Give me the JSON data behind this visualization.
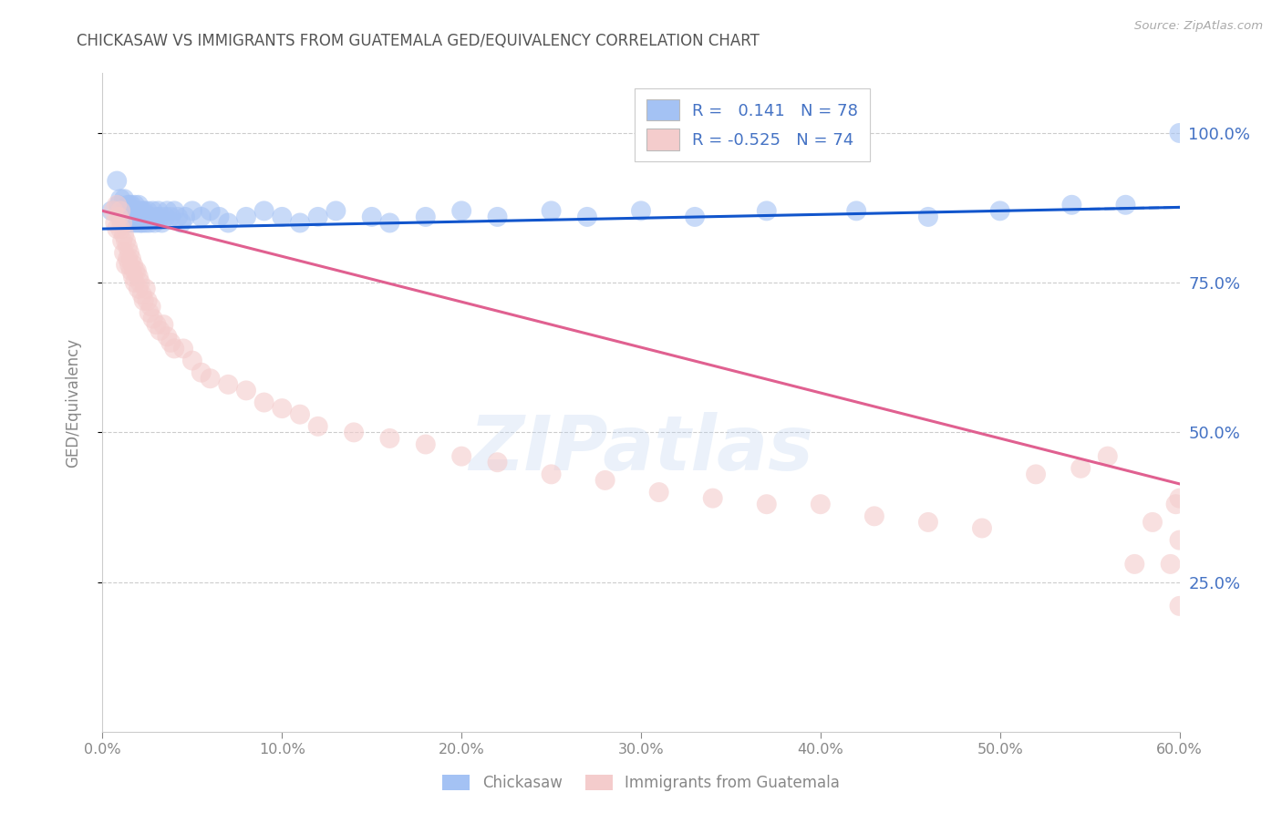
{
  "title": "CHICKASAW VS IMMIGRANTS FROM GUATEMALA GED/EQUIVALENCY CORRELATION CHART",
  "source": "Source: ZipAtlas.com",
  "ylabel": "GED/Equivalency",
  "xlim": [
    0.0,
    0.6
  ],
  "ylim": [
    0.0,
    1.1
  ],
  "xtick_labels": [
    "0.0%",
    "10.0%",
    "20.0%",
    "30.0%",
    "40.0%",
    "50.0%",
    "60.0%"
  ],
  "xtick_vals": [
    0.0,
    0.1,
    0.2,
    0.3,
    0.4,
    0.5,
    0.6
  ],
  "ytick_labels": [
    "25.0%",
    "50.0%",
    "75.0%",
    "100.0%"
  ],
  "ytick_vals": [
    0.25,
    0.5,
    0.75,
    1.0
  ],
  "watermark": "ZIPatlas",
  "blue_color": "#a4c2f4",
  "pink_color": "#f4cccc",
  "blue_line_color": "#1155cc",
  "pink_line_color": "#e06090",
  "title_color": "#555555",
  "axis_color": "#888888",
  "grid_color": "#cccccc",
  "watermark_color": "#b8d0f0",
  "right_tick_color": "#4472c4",
  "blue_R": 0.141,
  "blue_N": 78,
  "pink_R": -0.525,
  "pink_N": 74,
  "blue_intercept": 0.84,
  "blue_slope": 0.06,
  "pink_intercept": 0.87,
  "pink_slope": -0.76,
  "blue_scatter_x": [
    0.005,
    0.008,
    0.009,
    0.01,
    0.01,
    0.011,
    0.012,
    0.012,
    0.013,
    0.013,
    0.014,
    0.014,
    0.015,
    0.015,
    0.015,
    0.016,
    0.016,
    0.017,
    0.017,
    0.018,
    0.018,
    0.018,
    0.019,
    0.019,
    0.02,
    0.02,
    0.021,
    0.021,
    0.022,
    0.022,
    0.023,
    0.023,
    0.024,
    0.024,
    0.025,
    0.025,
    0.026,
    0.027,
    0.028,
    0.029,
    0.03,
    0.031,
    0.032,
    0.033,
    0.035,
    0.036,
    0.038,
    0.04,
    0.042,
    0.044,
    0.046,
    0.05,
    0.055,
    0.06,
    0.065,
    0.07,
    0.08,
    0.09,
    0.1,
    0.11,
    0.12,
    0.13,
    0.15,
    0.16,
    0.18,
    0.2,
    0.22,
    0.25,
    0.27,
    0.3,
    0.33,
    0.37,
    0.42,
    0.46,
    0.5,
    0.54,
    0.57,
    0.6
  ],
  "blue_scatter_y": [
    0.87,
    0.92,
    0.88,
    0.86,
    0.89,
    0.85,
    0.87,
    0.89,
    0.87,
    0.85,
    0.88,
    0.86,
    0.87,
    0.85,
    0.88,
    0.86,
    0.88,
    0.85,
    0.87,
    0.86,
    0.88,
    0.87,
    0.85,
    0.86,
    0.87,
    0.88,
    0.85,
    0.86,
    0.87,
    0.85,
    0.86,
    0.87,
    0.85,
    0.86,
    0.87,
    0.86,
    0.85,
    0.86,
    0.87,
    0.85,
    0.86,
    0.87,
    0.86,
    0.85,
    0.86,
    0.87,
    0.86,
    0.87,
    0.86,
    0.85,
    0.86,
    0.87,
    0.86,
    0.87,
    0.86,
    0.85,
    0.86,
    0.87,
    0.86,
    0.85,
    0.86,
    0.87,
    0.86,
    0.85,
    0.86,
    0.87,
    0.86,
    0.87,
    0.86,
    0.87,
    0.86,
    0.87,
    0.87,
    0.86,
    0.87,
    0.88,
    0.88,
    1.0
  ],
  "pink_scatter_x": [
    0.006,
    0.007,
    0.008,
    0.008,
    0.009,
    0.01,
    0.01,
    0.011,
    0.011,
    0.012,
    0.012,
    0.013,
    0.013,
    0.014,
    0.014,
    0.015,
    0.015,
    0.016,
    0.016,
    0.017,
    0.017,
    0.018,
    0.018,
    0.019,
    0.02,
    0.02,
    0.021,
    0.022,
    0.023,
    0.024,
    0.025,
    0.026,
    0.027,
    0.028,
    0.03,
    0.032,
    0.034,
    0.036,
    0.038,
    0.04,
    0.045,
    0.05,
    0.055,
    0.06,
    0.07,
    0.08,
    0.09,
    0.1,
    0.11,
    0.12,
    0.14,
    0.16,
    0.18,
    0.2,
    0.22,
    0.25,
    0.28,
    0.31,
    0.34,
    0.37,
    0.4,
    0.43,
    0.46,
    0.49,
    0.52,
    0.545,
    0.56,
    0.575,
    0.585,
    0.595,
    0.598,
    0.6,
    0.6,
    0.6
  ],
  "pink_scatter_y": [
    0.87,
    0.85,
    0.88,
    0.84,
    0.86,
    0.84,
    0.87,
    0.82,
    0.85,
    0.83,
    0.8,
    0.82,
    0.78,
    0.81,
    0.79,
    0.78,
    0.8,
    0.77,
    0.79,
    0.76,
    0.78,
    0.77,
    0.75,
    0.77,
    0.76,
    0.74,
    0.75,
    0.73,
    0.72,
    0.74,
    0.72,
    0.7,
    0.71,
    0.69,
    0.68,
    0.67,
    0.68,
    0.66,
    0.65,
    0.64,
    0.64,
    0.62,
    0.6,
    0.59,
    0.58,
    0.57,
    0.55,
    0.54,
    0.53,
    0.51,
    0.5,
    0.49,
    0.48,
    0.46,
    0.45,
    0.43,
    0.42,
    0.4,
    0.39,
    0.38,
    0.38,
    0.36,
    0.35,
    0.34,
    0.43,
    0.44,
    0.46,
    0.28,
    0.35,
    0.28,
    0.38,
    0.32,
    0.39,
    0.21
  ]
}
